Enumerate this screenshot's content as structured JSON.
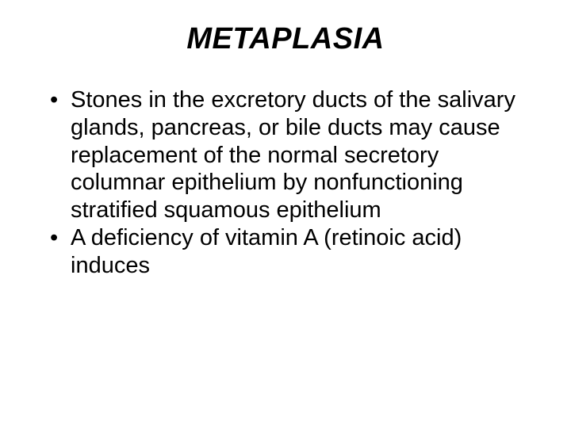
{
  "slide": {
    "title": "METAPLASIA",
    "bullets": [
      "Stones in the excretory ducts of the salivary glands, pancreas, or bile ducts may cause replacement of the normal secretory columnar epithelium by nonfunctioning stratified squamous epithelium",
      "A deficiency of vitamin A (retinoic acid) induces"
    ],
    "colors": {
      "background": "#ffffff",
      "text": "#000000"
    },
    "typography": {
      "title_fontsize": 38,
      "title_weight": "bold",
      "title_style": "italic",
      "body_fontsize": 29,
      "font_family": "Arial"
    }
  }
}
